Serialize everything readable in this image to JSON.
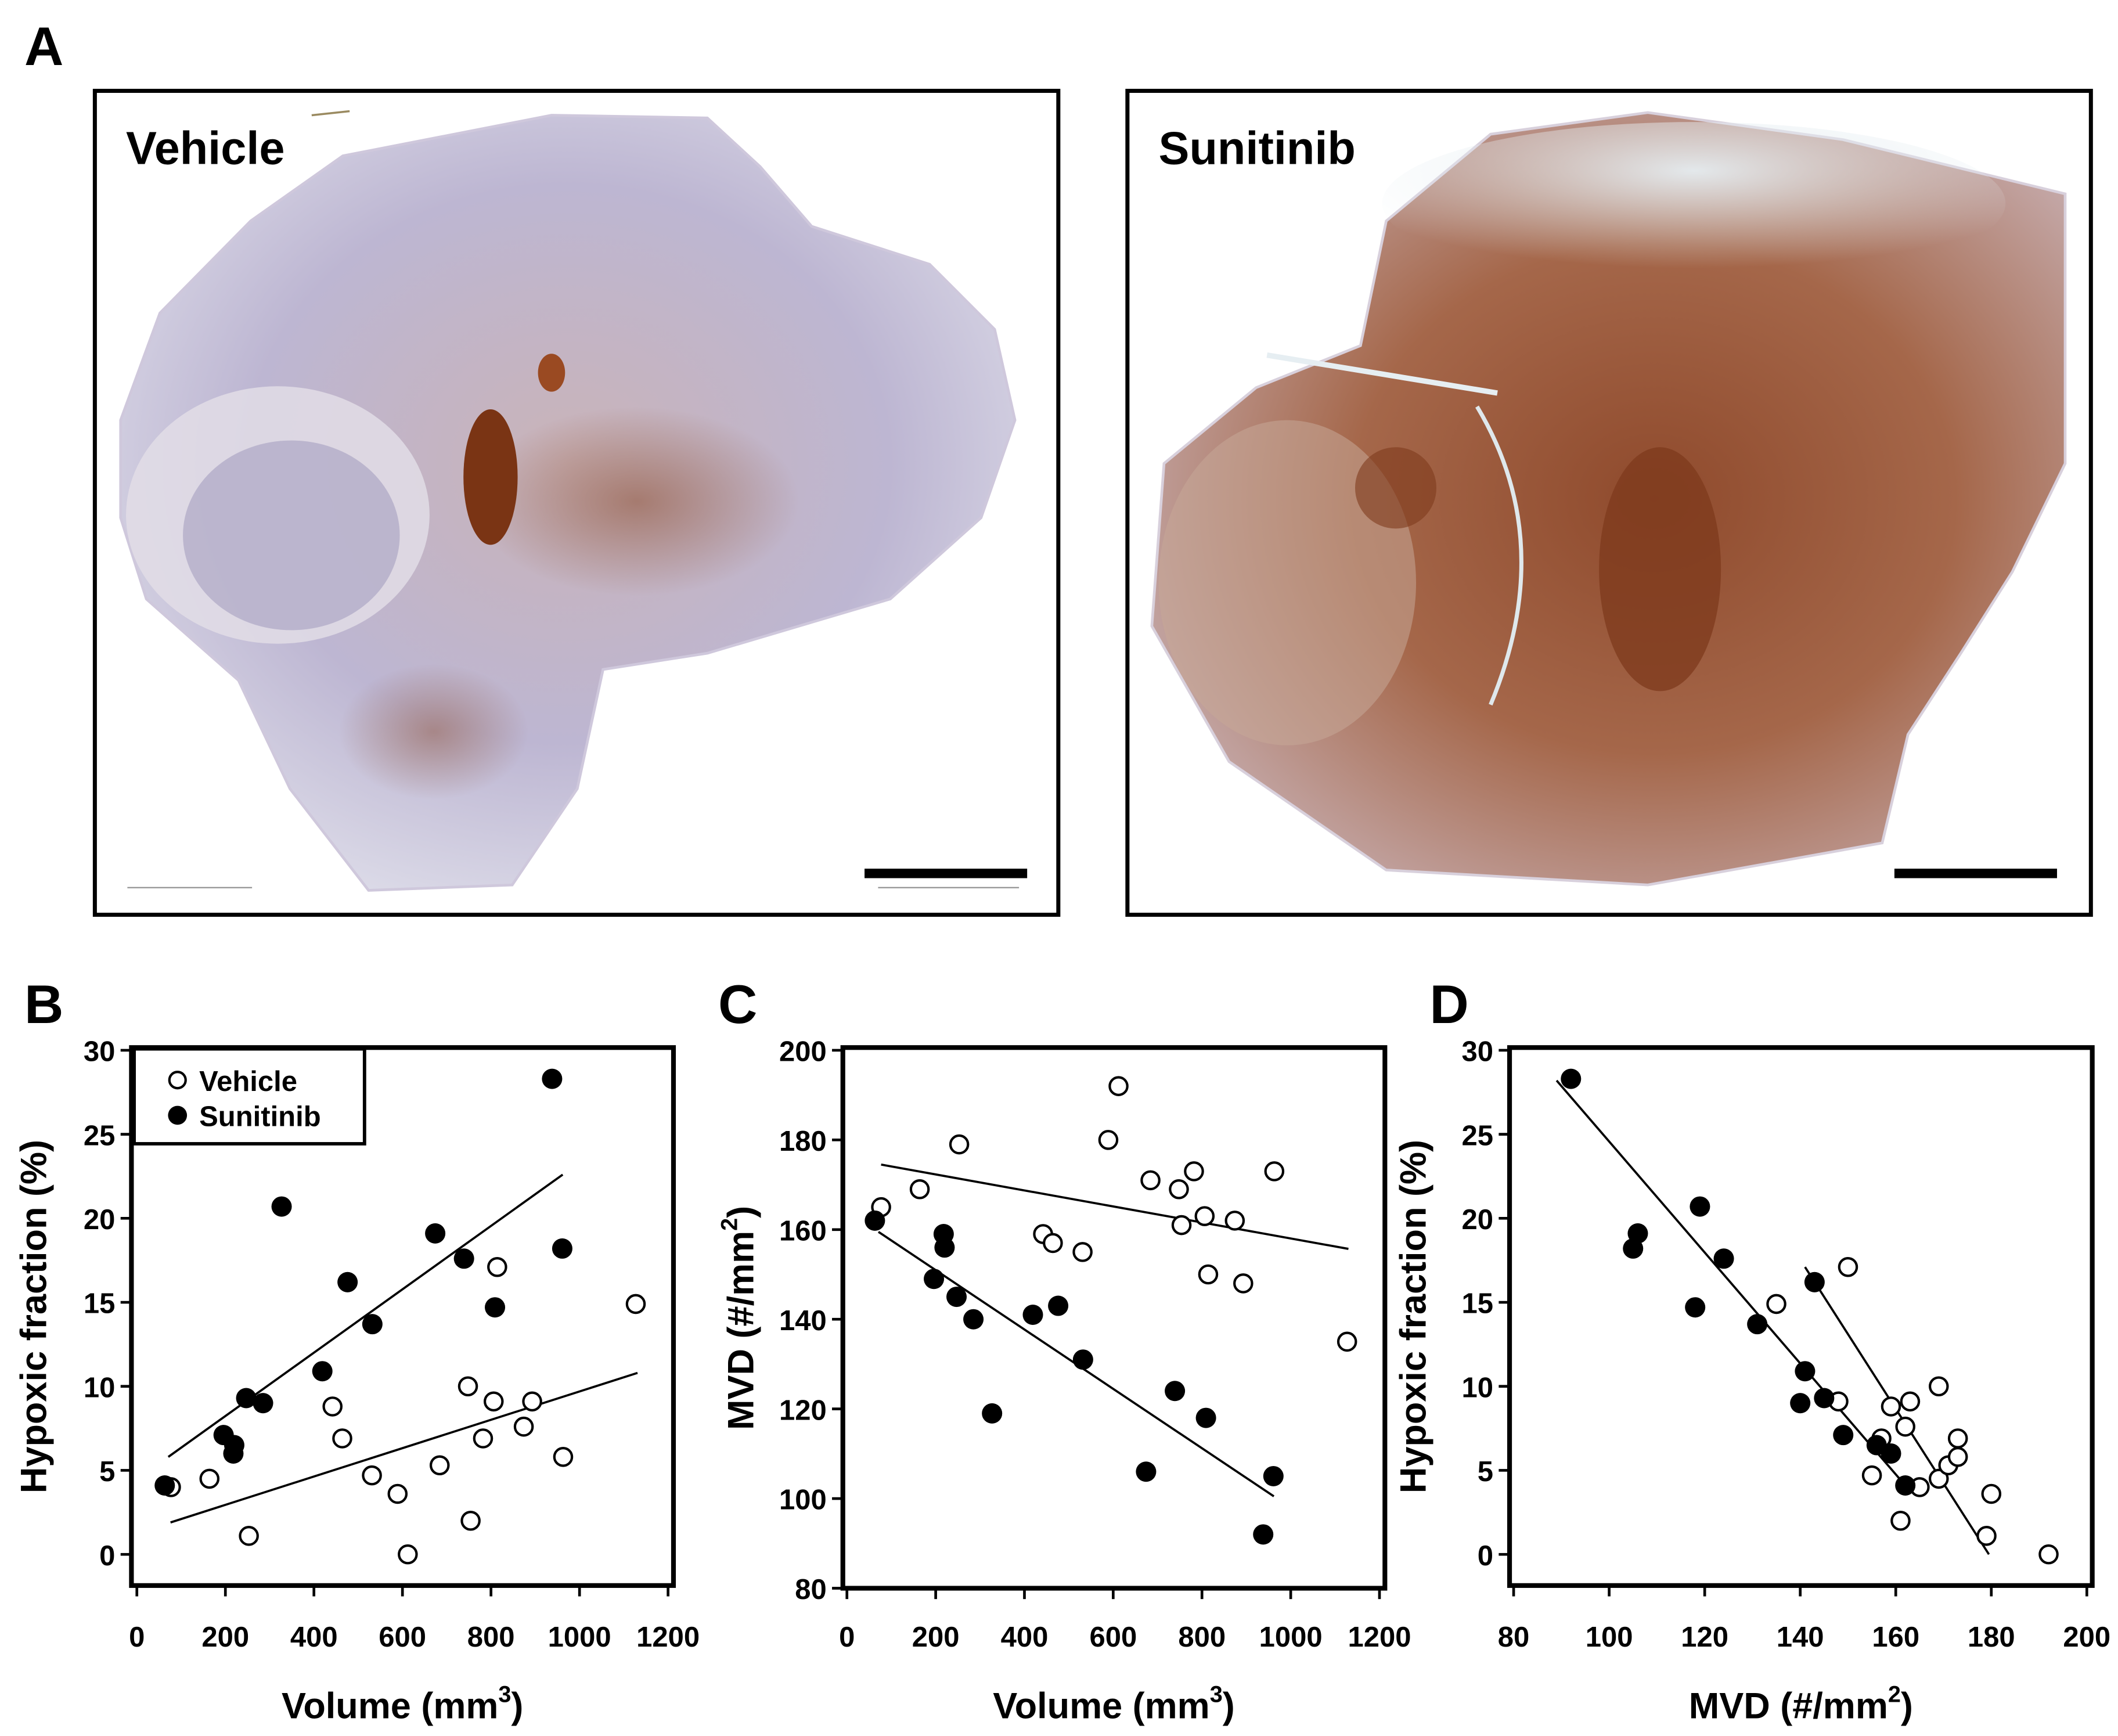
{
  "panel_labels": {
    "a": "A",
    "b": "B",
    "c": "C",
    "d": "D"
  },
  "histology": {
    "left_label": "Vehicle",
    "right_label": "Sunitinib",
    "stain_color": "#8a4a2c",
    "tissue_color": "#b8b0cc"
  },
  "legend": {
    "vehicle": "Vehicle",
    "sunitinib": "Sunitinib",
    "placement": "top-left"
  },
  "chart_data": [
    {
      "panel": "B",
      "type": "scatter",
      "xlabel": "Volume (mm",
      "xlabel_sup": "3",
      "xlabel_end": ")",
      "ylabel": "Hypoxic fraction (%)",
      "xlim": [
        0,
        1200
      ],
      "ylim": [
        -2,
        30
      ],
      "xticks": [
        "0",
        "200",
        "400",
        "600",
        "800",
        "1000",
        "1200"
      ],
      "yticks": [
        "0",
        "5",
        "10",
        "15",
        "20",
        "25",
        "30"
      ],
      "grid": false,
      "series": [
        {
          "name": "Vehicle",
          "marker": "open",
          "points": [
            [
              77,
              4.0
            ],
            [
              164,
              4.5
            ],
            [
              253,
              1.1
            ],
            [
              442,
              8.8
            ],
            [
              464,
              6.9
            ],
            [
              531,
              4.7
            ],
            [
              589,
              3.6
            ],
            [
              612,
              0.0
            ],
            [
              684,
              5.3
            ],
            [
              748,
              10.0
            ],
            [
              754,
              2.0
            ],
            [
              782,
              6.9
            ],
            [
              806,
              9.1
            ],
            [
              814,
              17.1
            ],
            [
              874,
              7.6
            ],
            [
              893,
              9.1
            ],
            [
              963,
              5.8
            ],
            [
              1127,
              14.9
            ]
          ],
          "fit_line": [
            [
              76,
              1.9
            ],
            [
              1131,
              10.8
            ]
          ]
        },
        {
          "name": "Sunitinib",
          "marker": "filled",
          "points": [
            [
              63,
              4.1
            ],
            [
              196,
              7.1
            ],
            [
              220,
              6.5
            ],
            [
              218,
              6.0
            ],
            [
              247,
              9.3
            ],
            [
              285,
              9.0
            ],
            [
              327,
              20.7
            ],
            [
              419,
              10.9
            ],
            [
              476,
              16.2
            ],
            [
              532,
              13.7
            ],
            [
              674,
              19.1
            ],
            [
              739,
              17.6
            ],
            [
              809,
              14.7
            ],
            [
              938,
              28.3
            ],
            [
              961,
              18.2
            ]
          ],
          "fit_line": [
            [
              71,
              5.8
            ],
            [
              962,
              22.6
            ]
          ]
        }
      ]
    },
    {
      "panel": "C",
      "type": "scatter",
      "xlabel": "Volume (mm",
      "xlabel_sup": "3",
      "xlabel_end": ")",
      "ylabel": "MVD (#/mm",
      "ylabel_sup": "2",
      "ylabel_end": ")",
      "xlim": [
        0,
        1200
      ],
      "ylim": [
        80,
        200
      ],
      "xticks": [
        "0",
        "200",
        "400",
        "600",
        "800",
        "1000",
        "1200"
      ],
      "yticks": [
        "80",
        "100",
        "120",
        "140",
        "160",
        "180",
        "200"
      ],
      "grid": false,
      "series": [
        {
          "marker": "open",
          "points": [
            [
              77,
              165
            ],
            [
              164,
              169
            ],
            [
              253,
              179
            ],
            [
              442,
              159
            ],
            [
              464,
              157
            ],
            [
              531,
              155
            ],
            [
              589,
              180
            ],
            [
              612,
              192
            ],
            [
              684,
              171
            ],
            [
              748,
              169
            ],
            [
              754,
              161
            ],
            [
              782,
              173
            ],
            [
              806,
              163
            ],
            [
              814,
              150
            ],
            [
              874,
              162
            ],
            [
              893,
              148
            ],
            [
              963,
              173
            ],
            [
              1127,
              135
            ]
          ],
          "fit_line": [
            [
              77,
              174.5
            ],
            [
              1130,
              155.7
            ]
          ]
        },
        {
          "marker": "filled",
          "points": [
            [
              63,
              162
            ],
            [
              196,
              149
            ],
            [
              220,
              156
            ],
            [
              218,
              159
            ],
            [
              247,
              145
            ],
            [
              285,
              140
            ],
            [
              327,
              119
            ],
            [
              419,
              141
            ],
            [
              476,
              143
            ],
            [
              532,
              131
            ],
            [
              674,
              106
            ],
            [
              739,
              124
            ],
            [
              809,
              118
            ],
            [
              938,
              92
            ],
            [
              961,
              105
            ]
          ],
          "fit_line": [
            [
              71,
              159.5
            ],
            [
              962,
              100.5
            ]
          ]
        }
      ]
    },
    {
      "panel": "D",
      "type": "scatter",
      "xlabel": "MVD (#/mm",
      "xlabel_sup": "2",
      "xlabel_end": ")",
      "ylabel": "Hypoxic fraction (%)",
      "xlim": [
        80,
        200
      ],
      "ylim": [
        -2,
        30
      ],
      "xticks": [
        "80",
        "100",
        "120",
        "140",
        "160",
        "180",
        "200"
      ],
      "yticks": [
        "0",
        "5",
        "10",
        "15",
        "20",
        "25",
        "30"
      ],
      "grid": false,
      "series": [
        {
          "marker": "open",
          "points": [
            [
              165,
              4.0
            ],
            [
              169,
              4.5
            ],
            [
              179,
              1.1
            ],
            [
              159,
              8.8
            ],
            [
              157,
              6.9
            ],
            [
              155,
              4.7
            ],
            [
              180,
              3.6
            ],
            [
              192,
              0.0
            ],
            [
              171,
              5.3
            ],
            [
              169,
              10.0
            ],
            [
              161,
              2.0
            ],
            [
              173,
              6.9
            ],
            [
              163,
              9.1
            ],
            [
              150,
              17.1
            ],
            [
              162,
              7.6
            ],
            [
              148,
              9.1
            ],
            [
              173,
              5.8
            ],
            [
              135,
              14.9
            ]
          ],
          "fit_line": [
            [
              141,
              17.1
            ],
            [
              179.5,
              0.0
            ]
          ]
        },
        {
          "marker": "filled",
          "points": [
            [
              162,
              4.1
            ],
            [
              149,
              7.1
            ],
            [
              156,
              6.5
            ],
            [
              159,
              6.0
            ],
            [
              145,
              9.3
            ],
            [
              140,
              9.0
            ],
            [
              119,
              20.7
            ],
            [
              141,
              10.9
            ],
            [
              143,
              16.2
            ],
            [
              131,
              13.7
            ],
            [
              106,
              19.1
            ],
            [
              124,
              17.6
            ],
            [
              118,
              14.7
            ],
            [
              92,
              28.3
            ],
            [
              105,
              18.2
            ]
          ],
          "fit_line": [
            [
              89,
              28.2
            ],
            [
              162,
              4.1
            ]
          ]
        }
      ]
    }
  ]
}
